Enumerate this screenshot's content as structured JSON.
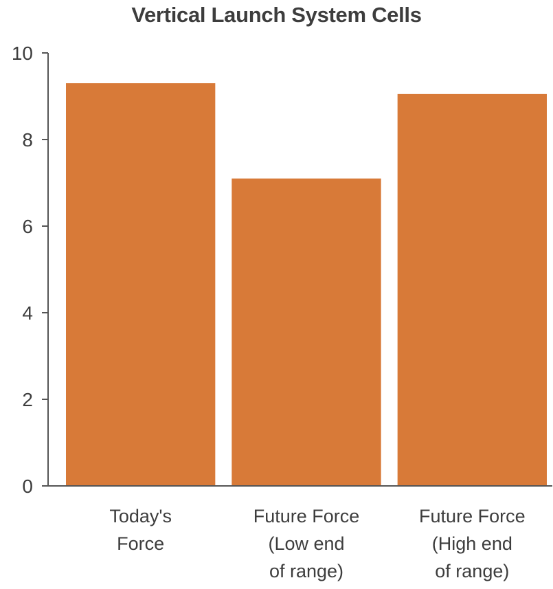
{
  "chart_data": {
    "type": "bar",
    "title": "Vertical Launch System Cells",
    "xlabel": "",
    "ylabel": "",
    "ylim": [
      0,
      10
    ],
    "yticks": [
      0,
      2,
      4,
      6,
      8,
      10
    ],
    "categories": [
      [
        "Today's",
        "Force"
      ],
      [
        "Future Force",
        "(Low end",
        "of range)"
      ],
      [
        "Future Force",
        "(High end",
        "of range)"
      ]
    ],
    "values": [
      9.3,
      7.1,
      9.05
    ],
    "grid": false,
    "legend": "none",
    "bar_color": "#d87a38"
  }
}
